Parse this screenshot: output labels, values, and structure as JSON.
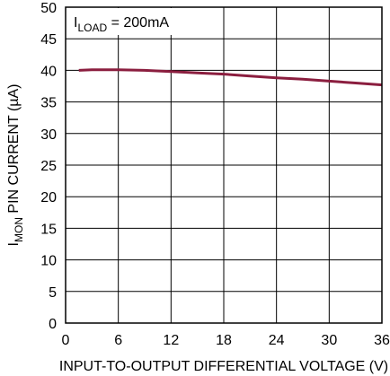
{
  "chart_data": {
    "type": "line",
    "xlabel": "INPUT-TO-OUTPUT DIFFERENTIAL VOLTAGE (V)",
    "ylabel": {
      "prefix": "I",
      "subscript": "MON",
      "suffix": " PIN CURRENT (µA)"
    },
    "xlim": [
      0,
      36
    ],
    "ylim": [
      0,
      50
    ],
    "x_ticks": [
      0,
      6,
      12,
      18,
      24,
      30,
      36
    ],
    "y_ticks": [
      0,
      5,
      10,
      15,
      20,
      25,
      30,
      35,
      40,
      45,
      50
    ],
    "grid": true,
    "annotation": {
      "prefix": "I",
      "subscript": "LOAD",
      "suffix": " = 200mA"
    },
    "series": [
      {
        "color": "#8b1e3f",
        "x": [
          1.5,
          3,
          6,
          9,
          12,
          15,
          18,
          21,
          24,
          27,
          30,
          33,
          36
        ],
        "y": [
          40.0,
          40.1,
          40.1,
          40.0,
          39.8,
          39.6,
          39.4,
          39.1,
          38.8,
          38.6,
          38.3,
          38.0,
          37.7
        ]
      }
    ]
  }
}
